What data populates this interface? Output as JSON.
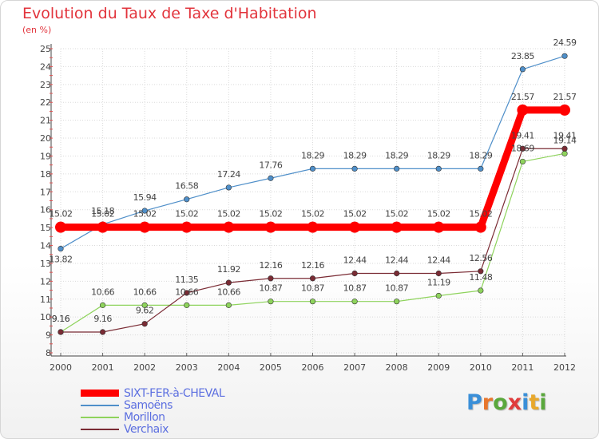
{
  "title": "Evolution du Taux de Taxe d'Habitation",
  "subtitle": "(en %)",
  "logo": {
    "text": "Proxiti",
    "colors": [
      "#3a8fd8",
      "#e8762c",
      "#5aa83c",
      "#e03c3c",
      "#3a8fd8",
      "#e8a82c",
      "#5aa83c"
    ]
  },
  "chart_data": {
    "type": "line",
    "x": [
      "2000",
      "2001",
      "2002",
      "2003",
      "2004",
      "2005",
      "2006",
      "2007",
      "2008",
      "2009",
      "2010",
      "2011",
      "2012"
    ],
    "ylim": [
      8,
      25
    ],
    "yticks": [
      "8",
      "9",
      "10",
      "11",
      "12",
      "13",
      "14",
      "15",
      "16",
      "17",
      "18",
      "19",
      "20",
      "21",
      "22",
      "23",
      "24",
      "25"
    ],
    "grid": true,
    "legend_position": "bottom-left",
    "series": [
      {
        "name": "SIXT-FER-à-CHEVAL",
        "color": "#ff0000",
        "values": [
          15.02,
          15.02,
          15.02,
          15.02,
          15.02,
          15.02,
          15.02,
          15.02,
          15.02,
          15.02,
          15.02,
          21.57,
          21.57
        ],
        "labels": [
          "15.02",
          "15.02",
          "15.02",
          "15.02",
          "15.02",
          "15.02",
          "15.02",
          "15.02",
          "15.02",
          "15.02",
          "15.02",
          "21.57",
          "21.57"
        ]
      },
      {
        "name": "Samoëns",
        "color": "#4f8fc9",
        "values": [
          13.82,
          15.18,
          15.94,
          16.58,
          17.24,
          17.76,
          18.29,
          18.29,
          18.29,
          18.29,
          18.29,
          23.85,
          24.59
        ],
        "labels": [
          "13.82",
          "15.18",
          "15.94",
          "16.58",
          "17.24",
          "17.76",
          "18.29",
          "18.29",
          "18.29",
          "18.29",
          "18.29",
          "23.85",
          "24.59"
        ]
      },
      {
        "name": "Morillon",
        "color": "#8ed35c",
        "values": [
          9.16,
          10.66,
          10.66,
          10.66,
          10.66,
          10.87,
          10.87,
          10.87,
          10.87,
          11.19,
          11.48,
          18.69,
          19.14
        ],
        "labels": [
          "9.16",
          "10.66",
          "10.66",
          "10.66",
          "10.66",
          "10.87",
          "10.87",
          "10.87",
          "10.87",
          "11.19",
          "11.48",
          "18.69",
          "19.14"
        ]
      },
      {
        "name": "Verchaix",
        "color": "#7a2b34",
        "values": [
          9.16,
          9.16,
          9.62,
          11.35,
          11.92,
          12.16,
          12.16,
          12.44,
          12.44,
          12.44,
          12.56,
          19.41,
          19.41
        ],
        "labels": [
          "9.16",
          "9.16",
          "9.62",
          "11.35",
          "11.92",
          "12.16",
          "12.16",
          "12.44",
          "12.44",
          "12.44",
          "12.56",
          "19.41",
          "19.41"
        ]
      }
    ]
  }
}
